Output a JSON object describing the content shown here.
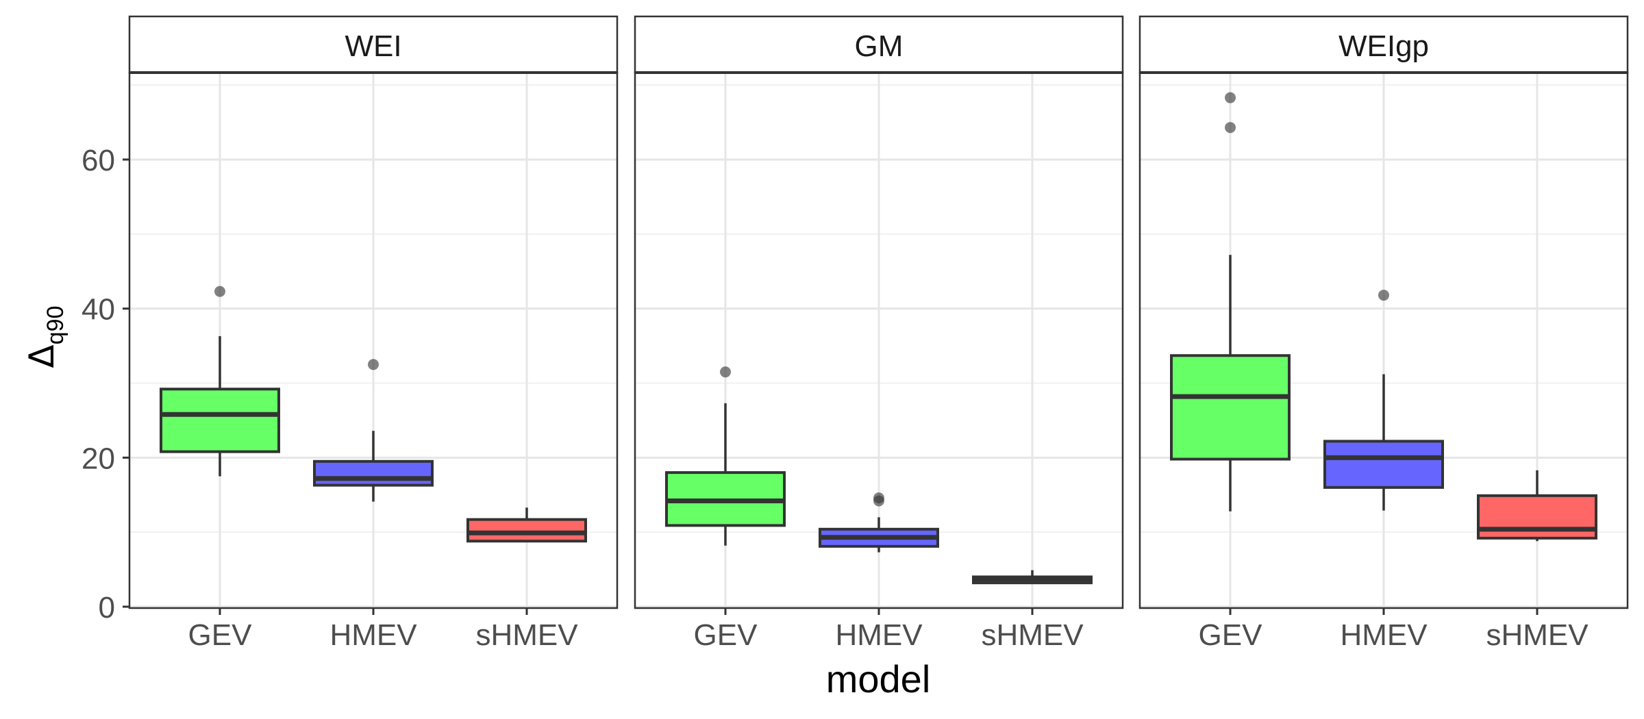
{
  "chart_data": {
    "type": "boxplot",
    "xlabel": "model",
    "ylabel": {
      "symbol": "Δ",
      "subscript": "q90"
    },
    "ylim": [
      0,
      71
    ],
    "yticks": [
      0,
      20,
      40,
      60
    ],
    "grid": true,
    "categories": [
      "GEV",
      "HMEV",
      "sHMEV"
    ],
    "colors": {
      "GEV": "#66ff66",
      "HMEV": "#6666ff",
      "sHMEV": "#ff6666"
    },
    "panels": [
      {
        "name": "WEI",
        "boxes": [
          {
            "category": "GEV",
            "lower_whisker": 17.5,
            "q1": 20.8,
            "median": 25.8,
            "q3": 29.2,
            "upper_whisker": 36.3,
            "outliers": [
              42.3
            ]
          },
          {
            "category": "HMEV",
            "lower_whisker": 14.1,
            "q1": 16.3,
            "median": 17.2,
            "q3": 19.5,
            "upper_whisker": 23.6,
            "outliers": [
              32.5
            ]
          },
          {
            "category": "sHMEV",
            "lower_whisker": 8.7,
            "q1": 8.8,
            "median": 9.9,
            "q3": 11.7,
            "upper_whisker": 13.3,
            "outliers": []
          }
        ]
      },
      {
        "name": "GM",
        "boxes": [
          {
            "category": "GEV",
            "lower_whisker": 8.2,
            "q1": 10.9,
            "median": 14.2,
            "q3": 18.0,
            "upper_whisker": 27.3,
            "outliers": [
              31.5
            ]
          },
          {
            "category": "HMEV",
            "lower_whisker": 7.3,
            "q1": 8.1,
            "median": 9.3,
            "q3": 10.4,
            "upper_whisker": 12.0,
            "outliers": [
              14.2,
              14.6
            ]
          },
          {
            "category": "sHMEV",
            "lower_whisker": 3.2,
            "q1": 3.2,
            "median": 3.7,
            "q3": 4.0,
            "upper_whisker": 4.9,
            "outliers": []
          }
        ]
      },
      {
        "name": "WEIgp",
        "boxes": [
          {
            "category": "GEV",
            "lower_whisker": 12.8,
            "q1": 19.8,
            "median": 28.2,
            "q3": 33.7,
            "upper_whisker": 47.2,
            "outliers": [
              64.3,
              68.3
            ]
          },
          {
            "category": "HMEV",
            "lower_whisker": 12.9,
            "q1": 16.0,
            "median": 20.0,
            "q3": 22.2,
            "upper_whisker": 31.2,
            "outliers": [
              41.8
            ]
          },
          {
            "category": "sHMEV",
            "lower_whisker": 8.8,
            "q1": 9.2,
            "median": 10.4,
            "q3": 14.9,
            "upper_whisker": 18.3,
            "outliers": []
          }
        ]
      }
    ]
  }
}
